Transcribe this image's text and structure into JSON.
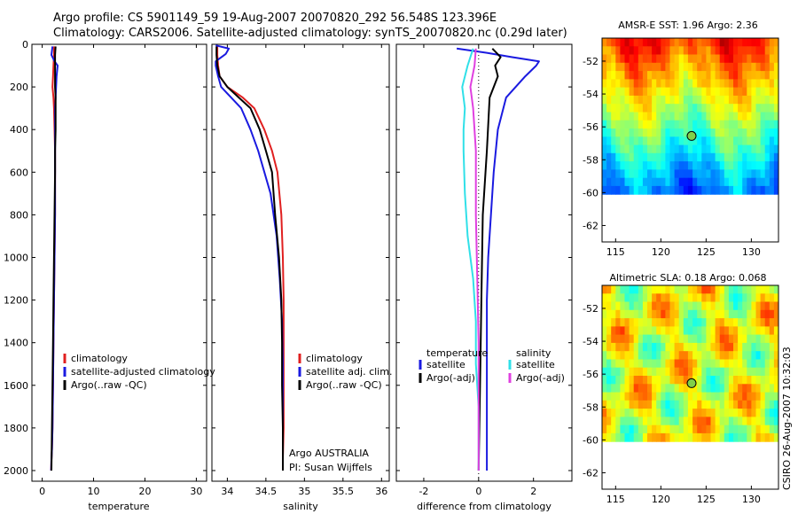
{
  "header": {
    "title_line1": "Argo profile: CS 5901149_59 19-Aug-2007 20070820_292 56.548S 123.396E",
    "title_line2": "Climatology: CARS2006. Satellite-adjusted climatology: synTS_20070820.nc (0.29d later)"
  },
  "credit": "CSIRO 26-Aug-2007 10:32:03",
  "colors": {
    "climatology": "#e02020",
    "satellite": "#1a1ae0",
    "argo": "#000000",
    "salinity_satellite": "#30e0e8",
    "salinity_argo": "#e040e0"
  },
  "chart_data": [
    {
      "type": "line",
      "xlabel": "temperature",
      "ylabel": "",
      "xlim": [
        -2,
        32
      ],
      "ylim": [
        2050,
        0
      ],
      "y_reversed": true,
      "xticks": [
        0,
        10,
        20,
        30
      ],
      "yticks": [
        0,
        200,
        400,
        600,
        800,
        1000,
        1200,
        1400,
        1600,
        1800,
        2000
      ],
      "legend_position": "lower-right",
      "legend": [
        "climatology",
        "satellite-adjusted climatology",
        "Argo(..raw -QC)"
      ],
      "series": [
        {
          "name": "climatology",
          "color_key": "climatology",
          "x": [
            2.3,
            2.3,
            2.2,
            2.1,
            2.0,
            2.2,
            2.3,
            2.4,
            2.5,
            2.5,
            2.5,
            2.4,
            2.3,
            2.2,
            2.1,
            2.0,
            1.9,
            1.8,
            1.75
          ],
          "y": [
            10,
            50,
            100,
            150,
            200,
            250,
            300,
            400,
            500,
            600,
            800,
            1000,
            1200,
            1400,
            1600,
            1800,
            1900,
            1950,
            2000
          ]
        },
        {
          "name": "satellite-adjusted climatology",
          "color_key": "satellite",
          "x": [
            2.0,
            1.8,
            2.4,
            3.0,
            2.8,
            2.6,
            2.5,
            2.5,
            2.5,
            2.5,
            2.5,
            2.4,
            2.3,
            2.2,
            2.1,
            2.0,
            1.9,
            1.8,
            1.75
          ],
          "y": [
            10,
            50,
            80,
            100,
            150,
            250,
            300,
            400,
            500,
            600,
            800,
            1000,
            1200,
            1400,
            1600,
            1800,
            1900,
            1950,
            2000
          ]
        },
        {
          "name": "Argo(..raw -QC)",
          "color_key": "argo",
          "x": [
            2.6,
            2.5,
            2.5,
            2.5,
            2.5,
            2.6,
            2.6,
            2.6,
            2.5,
            2.5,
            2.4,
            2.3,
            2.2,
            2.1,
            2.0,
            1.9,
            1.8
          ],
          "y": [
            10,
            50,
            100,
            150,
            200,
            250,
            300,
            400,
            500,
            600,
            800,
            1000,
            1200,
            1400,
            1600,
            1800,
            2000
          ]
        }
      ]
    },
    {
      "type": "line",
      "xlabel": "salinity",
      "ylabel": "",
      "xlim": [
        33.8,
        36.1
      ],
      "ylim": [
        2050,
        0
      ],
      "y_reversed": true,
      "xticks": [
        34,
        34.5,
        35,
        35.5,
        36
      ],
      "xtick_labels": [
        "34",
        "34.5",
        "35",
        "35.5",
        "36"
      ],
      "legend_position": "lower-right",
      "legend": [
        "climatology",
        "satellite adj. clim.",
        "Argo(..raw -QC)"
      ],
      "annotation": [
        "Argo AUSTRALIA",
        "PI: Susan Wijffels"
      ],
      "series": [
        {
          "name": "climatology",
          "color_key": "climatology",
          "x": [
            33.87,
            33.87,
            33.88,
            33.9,
            34.0,
            34.2,
            34.35,
            34.48,
            34.58,
            34.65,
            34.7,
            34.72,
            34.73,
            34.73,
            34.73,
            34.73,
            34.72,
            34.72
          ],
          "y": [
            10,
            50,
            100,
            150,
            200,
            250,
            300,
            400,
            500,
            600,
            800,
            1000,
            1200,
            1400,
            1600,
            1800,
            1950,
            2000
          ]
        },
        {
          "name": "satellite adj. clim.",
          "color_key": "satellite",
          "x": [
            33.85,
            34.02,
            33.98,
            33.85,
            33.85,
            33.88,
            33.92,
            34.05,
            34.18,
            34.3,
            34.4,
            34.56,
            34.64,
            34.68,
            34.71,
            34.72,
            34.72,
            34.72,
            34.72,
            34.72
          ],
          "y": [
            5,
            20,
            45,
            80,
            100,
            150,
            200,
            250,
            300,
            400,
            500,
            700,
            900,
            1100,
            1300,
            1500,
            1700,
            1850,
            1950,
            2000
          ]
        },
        {
          "name": "Argo(..raw -QC)",
          "color_key": "argo",
          "x": [
            33.86,
            33.86,
            33.87,
            33.9,
            34.0,
            34.15,
            34.3,
            34.42,
            34.5,
            34.58,
            34.62,
            34.67,
            34.7,
            34.71,
            34.71,
            34.72,
            34.72
          ],
          "y": [
            10,
            50,
            100,
            150,
            200,
            250,
            300,
            400,
            500,
            600,
            800,
            1000,
            1200,
            1400,
            1600,
            1800,
            2000
          ]
        }
      ]
    },
    {
      "type": "line",
      "xlabel": "difference from climatology",
      "ylabel": "",
      "xlim": [
        -3,
        3.4
      ],
      "ylim": [
        2050,
        0
      ],
      "y_reversed": true,
      "xticks": [
        -2,
        0,
        2
      ],
      "zero_line": true,
      "legend_position": "lower",
      "legend_temperature": [
        "temperature",
        "satellite",
        "Argo(-adj)"
      ],
      "legend_salinity": [
        "salinity",
        "satellite",
        "Argo(-adj)"
      ],
      "series": [
        {
          "name": "satellite",
          "group": "temperature",
          "color_key": "satellite",
          "x": [
            -0.8,
            0.3,
            1.2,
            2.2,
            2.1,
            1.7,
            1.0,
            0.7,
            0.55,
            0.45,
            0.35,
            0.3,
            0.3,
            0.3,
            0.3,
            0.3,
            0.3,
            0.3
          ],
          "y": [
            20,
            40,
            60,
            80,
            100,
            150,
            250,
            400,
            600,
            800,
            1000,
            1200,
            1400,
            1600,
            1800,
            1900,
            1950,
            2000
          ]
        },
        {
          "name": "Argo(-adj)",
          "group": "temperature",
          "color_key": "argo",
          "x": [
            0.5,
            0.8,
            0.6,
            0.7,
            0.4,
            0.3,
            0.15,
            0.1,
            0.05,
            0.0
          ],
          "y": [
            20,
            60,
            100,
            150,
            250,
            500,
            800,
            1200,
            1600,
            2000
          ]
        },
        {
          "name": "satellite",
          "group": "salinity",
          "color_key": "salinity_satellite",
          "x": [
            -0.2,
            -0.4,
            -0.6,
            -0.5,
            -0.55,
            -0.55,
            -0.5,
            -0.4,
            -0.2,
            -0.1,
            -0.1,
            0.0,
            0.0,
            0.0
          ],
          "y": [
            20,
            100,
            200,
            300,
            400,
            500,
            700,
            900,
            1100,
            1300,
            1500,
            1700,
            1900,
            2000
          ]
        },
        {
          "name": "Argo(-adj)",
          "group": "salinity",
          "color_key": "salinity_argo",
          "x": [
            -0.1,
            -0.15,
            -0.3,
            -0.2,
            -0.1,
            -0.1,
            -0.05,
            0.0,
            0.0,
            0.0
          ],
          "y": [
            20,
            100,
            200,
            300,
            500,
            800,
            1100,
            1400,
            1700,
            2000
          ]
        }
      ]
    },
    {
      "type": "heatmap",
      "title": "AMSR-E SST: 1.96 Argo: 2.36",
      "xlabel": "",
      "ylabel": "",
      "xlim": [
        113.5,
        133
      ],
      "ylim": [
        -63,
        -50.6
      ],
      "xticks": [
        115,
        120,
        125,
        130
      ],
      "yticks": [
        -52,
        -54,
        -56,
        -58,
        -60,
        -62
      ],
      "data_ylim": [
        -60,
        -50.6
      ],
      "colormap": "jet",
      "argo_position": {
        "lon": 123.4,
        "lat": -56.55
      }
    },
    {
      "type": "heatmap",
      "title": "Altimetric SLA: 0.18 Argo: 0.068",
      "xlabel": "",
      "ylabel": "",
      "xlim": [
        113.5,
        133
      ],
      "ylim": [
        -63,
        -50.6
      ],
      "xticks": [
        115,
        120,
        125,
        130
      ],
      "yticks": [
        -52,
        -54,
        -56,
        -58,
        -60,
        -62
      ],
      "data_ylim": [
        -60,
        -50.6
      ],
      "colormap": "jet",
      "argo_position": {
        "lon": 123.4,
        "lat": -56.55
      }
    }
  ]
}
